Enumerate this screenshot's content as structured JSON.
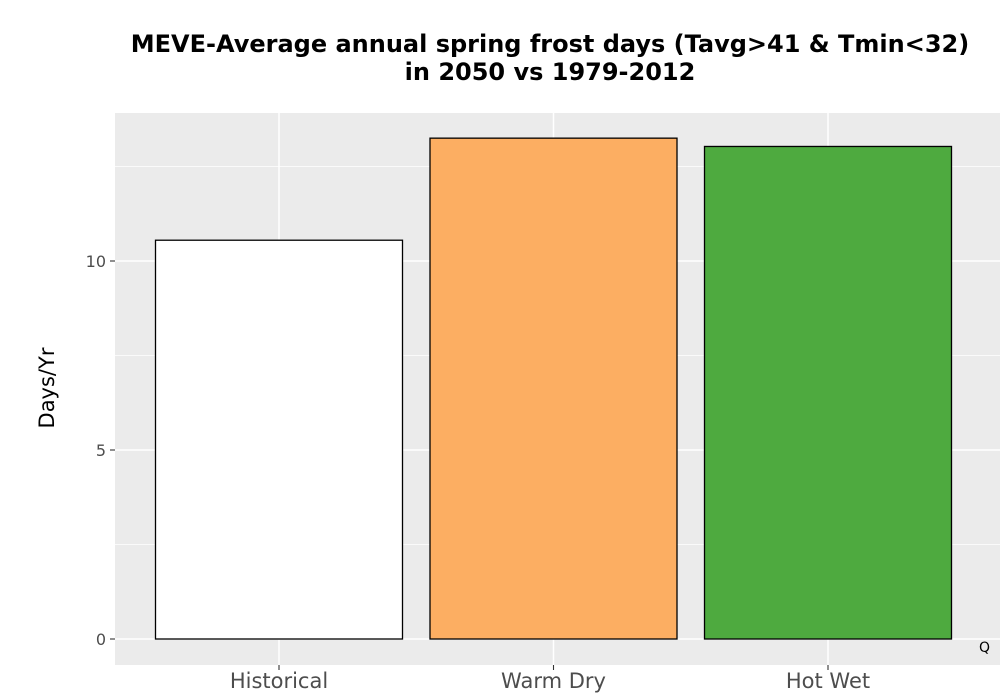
{
  "chart_data": {
    "type": "bar",
    "title_lines": [
      "MEVE-Average annual spring frost days (Tavg>41 & Tmin<32)",
      "in 2050 vs 1979-2012"
    ],
    "xlabel": "",
    "ylabel": "Days/Yr",
    "categories": [
      "Historical",
      "Warm Dry",
      "Hot Wet"
    ],
    "values": [
      10.55,
      13.25,
      13.03
    ],
    "bar_colors": [
      "#ffffff",
      "#fcae62",
      "#4eaa3f"
    ],
    "ylim": [
      0,
      13.9
    ],
    "yticks": [
      0,
      5,
      10
    ],
    "grid": true,
    "panel_background": "#ebebeb",
    "corner_tag": "Q"
  }
}
